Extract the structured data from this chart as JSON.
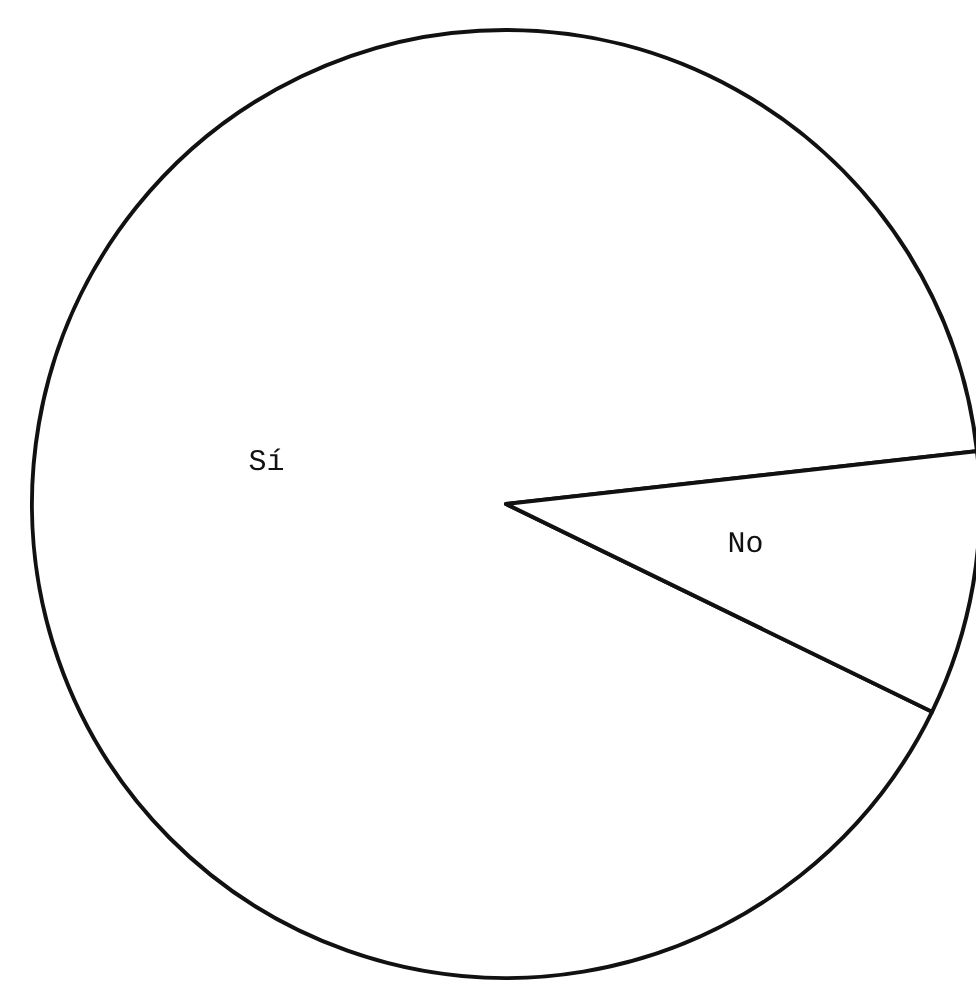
{
  "chart_data": {
    "type": "pie",
    "categories": [
      "Sí",
      "No"
    ],
    "values": [
      91,
      9
    ],
    "colors": [
      "#ffffff",
      "#ffffff"
    ],
    "legend": false,
    "data_labels": false
  }
}
